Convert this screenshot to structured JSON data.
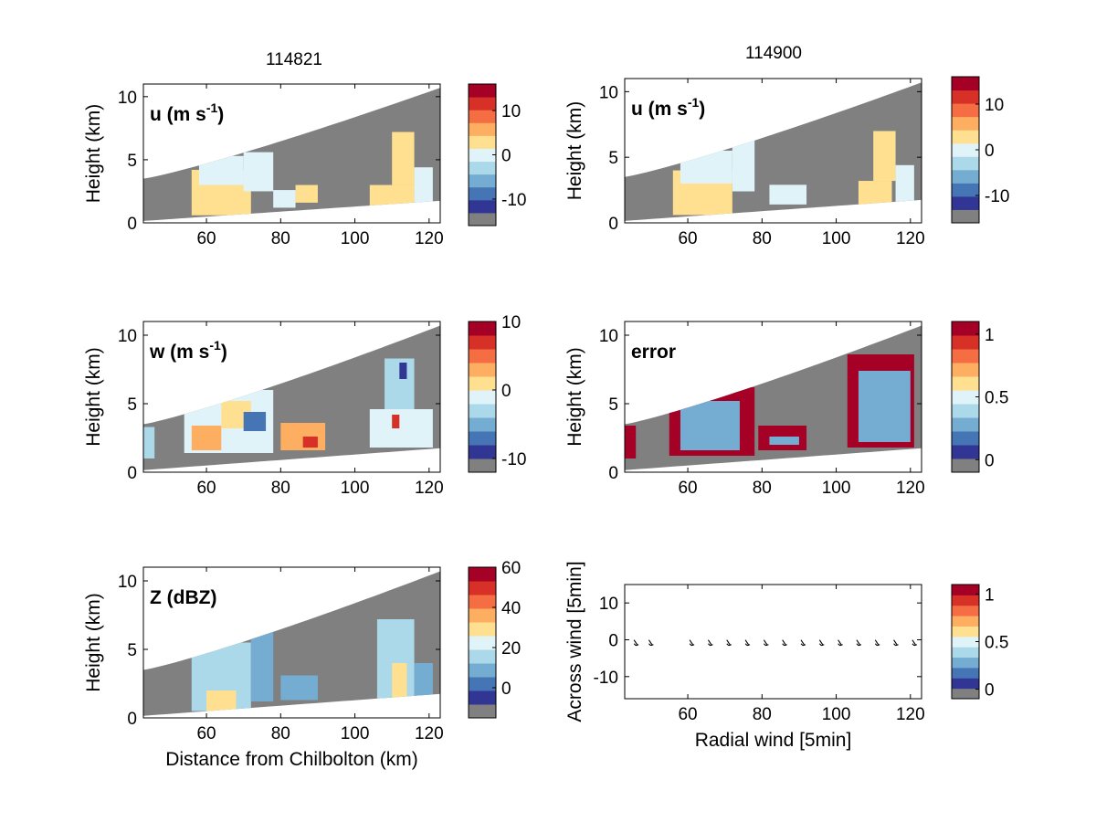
{
  "figure": {
    "column_titles": [
      "114821",
      "114900"
    ]
  },
  "colors": {
    "background_fill": "#808080",
    "colormap": [
      "#808080",
      "#313695",
      "#4575b4",
      "#74add1",
      "#abd9e9",
      "#e0f3f8",
      "#fee090",
      "#fdae61",
      "#f46d43",
      "#d73027",
      "#a50026"
    ]
  },
  "chart_data": [
    {
      "id": "u_left",
      "type": "heatmap",
      "title": "114821",
      "label": "u (m s",
      "label_sup": "-1",
      "label_end": ")",
      "xlabel": "",
      "ylabel": "Height (km)",
      "xlim": [
        43,
        123
      ],
      "ylim": [
        0,
        11
      ],
      "xticks": [
        "60",
        "80",
        "100",
        "120"
      ],
      "yticks": [
        "0",
        "5",
        "10"
      ],
      "colorbar": {
        "min": -16,
        "max": 16,
        "ticks": [
          "10",
          "0",
          "-10"
        ],
        "tick_values": [
          10,
          0,
          -10
        ]
      },
      "cells": [
        {
          "x": [
            56,
            72
          ],
          "y": [
            0.6,
            4.2
          ],
          "c": "#fee090"
        },
        {
          "x": [
            58,
            70
          ],
          "y": [
            3.0,
            5.3
          ],
          "c": "#e0f3f8"
        },
        {
          "x": [
            70,
            78
          ],
          "y": [
            2.5,
            5.6
          ],
          "c": "#e0f3f8"
        },
        {
          "x": [
            78,
            84
          ],
          "y": [
            1.2,
            2.6
          ],
          "c": "#e0f3f8"
        },
        {
          "x": [
            84,
            90
          ],
          "y": [
            1.6,
            3.0
          ],
          "c": "#fee090"
        },
        {
          "x": [
            104,
            116
          ],
          "y": [
            1.1,
            3.0
          ],
          "c": "#fee090"
        },
        {
          "x": [
            110,
            116
          ],
          "y": [
            3.0,
            7.2
          ],
          "c": "#fee090"
        },
        {
          "x": [
            116,
            121
          ],
          "y": [
            1.3,
            4.4
          ],
          "c": "#e0f3f8"
        }
      ]
    },
    {
      "id": "u_right",
      "type": "heatmap",
      "title": "114900",
      "label": "u (m s",
      "label_sup": "-1",
      "label_end": ")",
      "xlabel": "",
      "ylabel": "Height (km)",
      "xlim": [
        43,
        123
      ],
      "ylim": [
        0,
        11
      ],
      "xticks": [
        "60",
        "80",
        "100",
        "120"
      ],
      "yticks": [
        "0",
        "5",
        "10"
      ],
      "colorbar": {
        "min": -16,
        "max": 16,
        "ticks": [
          "10",
          "0",
          "-10"
        ],
        "tick_values": [
          10,
          0,
          -10
        ]
      },
      "cells": [
        {
          "x": [
            56,
            72
          ],
          "y": [
            0.6,
            4.0
          ],
          "c": "#fee090"
        },
        {
          "x": [
            58,
            72
          ],
          "y": [
            3.0,
            5.5
          ],
          "c": "#e0f3f8"
        },
        {
          "x": [
            72,
            78
          ],
          "y": [
            2.4,
            6.3
          ],
          "c": "#e0f3f8"
        },
        {
          "x": [
            82,
            92
          ],
          "y": [
            1.4,
            2.9
          ],
          "c": "#e0f3f8"
        },
        {
          "x": [
            106,
            115
          ],
          "y": [
            1.1,
            3.2
          ],
          "c": "#fee090"
        },
        {
          "x": [
            110,
            116
          ],
          "y": [
            3.2,
            7.0
          ],
          "c": "#fee090"
        },
        {
          "x": [
            116,
            121
          ],
          "y": [
            1.3,
            4.4
          ],
          "c": "#e0f3f8"
        }
      ]
    },
    {
      "id": "w_left",
      "type": "heatmap",
      "label": "w (m s",
      "label_sup": "-1",
      "label_end": ")",
      "xlabel": "",
      "ylabel": "Height (km)",
      "xlim": [
        43,
        123
      ],
      "ylim": [
        0,
        11
      ],
      "xticks": [
        "60",
        "80",
        "100",
        "120"
      ],
      "yticks": [
        "0",
        "5",
        "10"
      ],
      "colorbar": {
        "min": -12,
        "max": 10,
        "ticks": [
          "10",
          "0",
          "-10"
        ],
        "tick_values": [
          10,
          0,
          -10
        ]
      },
      "cells": [
        {
          "x": [
            43,
            46
          ],
          "y": [
            1.0,
            3.3
          ],
          "c": "#abd9e9"
        },
        {
          "x": [
            54,
            78
          ],
          "y": [
            1.4,
            6.0
          ],
          "c": "#e0f3f8"
        },
        {
          "x": [
            56,
            64
          ],
          "y": [
            1.6,
            3.4
          ],
          "c": "#fdae61"
        },
        {
          "x": [
            64,
            72
          ],
          "y": [
            3.2,
            5.2
          ],
          "c": "#fee090"
        },
        {
          "x": [
            70,
            76
          ],
          "y": [
            3.0,
            4.4
          ],
          "c": "#4575b4"
        },
        {
          "x": [
            80,
            92
          ],
          "y": [
            1.6,
            3.6
          ],
          "c": "#fdae61"
        },
        {
          "x": [
            86,
            90
          ],
          "y": [
            1.8,
            2.6
          ],
          "c": "#d73027"
        },
        {
          "x": [
            104,
            121
          ],
          "y": [
            1.8,
            4.6
          ],
          "c": "#e0f3f8"
        },
        {
          "x": [
            108,
            116
          ],
          "y": [
            4.6,
            8.3
          ],
          "c": "#abd9e9"
        },
        {
          "x": [
            112,
            114
          ],
          "y": [
            6.8,
            8.0
          ],
          "c": "#313695"
        },
        {
          "x": [
            110,
            112
          ],
          "y": [
            3.2,
            4.2
          ],
          "c": "#d73027"
        }
      ]
    },
    {
      "id": "error_right",
      "type": "heatmap",
      "label": "error",
      "xlabel": "",
      "ylabel": "Height (km)",
      "xlim": [
        43,
        123
      ],
      "ylim": [
        0,
        11
      ],
      "xticks": [
        "60",
        "80",
        "100",
        "120"
      ],
      "yticks": [
        "0",
        "5",
        "10"
      ],
      "colorbar": {
        "min": -0.1,
        "max": 1.1,
        "ticks": [
          "1",
          "0.5",
          "0"
        ],
        "tick_values": [
          1,
          0.5,
          0
        ]
      },
      "cells": [
        {
          "x": [
            43,
            46
          ],
          "y": [
            1.0,
            3.4
          ],
          "c": "#a50026"
        },
        {
          "x": [
            55,
            78
          ],
          "y": [
            1.2,
            6.2
          ],
          "c": "#a50026"
        },
        {
          "x": [
            58,
            74
          ],
          "y": [
            1.6,
            5.2
          ],
          "c": "#74add1"
        },
        {
          "x": [
            79,
            92
          ],
          "y": [
            1.6,
            3.4
          ],
          "c": "#a50026"
        },
        {
          "x": [
            82,
            90
          ],
          "y": [
            2.0,
            2.6
          ],
          "c": "#74add1"
        },
        {
          "x": [
            103,
            121
          ],
          "y": [
            1.8,
            8.6
          ],
          "c": "#a50026"
        },
        {
          "x": [
            106,
            120
          ],
          "y": [
            2.2,
            7.4
          ],
          "c": "#74add1"
        }
      ]
    },
    {
      "id": "z_left",
      "type": "heatmap",
      "label": "Z (dBZ)",
      "xlabel": "Distance from Chilbolton (km)",
      "ylabel": "Height (km)",
      "xlim": [
        43,
        123
      ],
      "ylim": [
        0,
        11
      ],
      "xticks": [
        "60",
        "80",
        "100",
        "120"
      ],
      "yticks": [
        "0",
        "5",
        "10"
      ],
      "colorbar": {
        "min": -15,
        "max": 60,
        "ticks": [
          "60",
          "40",
          "20",
          "0"
        ],
        "tick_values": [
          60,
          40,
          20,
          0
        ]
      },
      "cells": [
        {
          "x": [
            56,
            72
          ],
          "y": [
            0.5,
            5.5
          ],
          "c": "#abd9e9"
        },
        {
          "x": [
            60,
            68
          ],
          "y": [
            0.5,
            2.0
          ],
          "c": "#fee090"
        },
        {
          "x": [
            72,
            78
          ],
          "y": [
            1.2,
            6.3
          ],
          "c": "#74add1"
        },
        {
          "x": [
            80,
            90
          ],
          "y": [
            1.3,
            3.1
          ],
          "c": "#74add1"
        },
        {
          "x": [
            106,
            116
          ],
          "y": [
            1.1,
            7.2
          ],
          "c": "#abd9e9"
        },
        {
          "x": [
            110,
            114
          ],
          "y": [
            1.4,
            4.0
          ],
          "c": "#fee090"
        },
        {
          "x": [
            116,
            121
          ],
          "y": [
            1.2,
            4.0
          ],
          "c": "#74add1"
        }
      ]
    },
    {
      "id": "quiver_right",
      "type": "scatter",
      "xlabel": "Radial wind [5min]",
      "ylabel": "Across wind [5min]",
      "xlim": [
        43,
        123
      ],
      "ylim": [
        -16,
        15
      ],
      "xticks": [
        "60",
        "80",
        "100",
        "120"
      ],
      "yticks": [
        "10",
        "0",
        "-10"
      ],
      "ytick_values": [
        10,
        0,
        -10
      ],
      "colorbar": {
        "min": -0.1,
        "max": 1.1,
        "ticks": [
          "1",
          "0.5",
          "0"
        ],
        "tick_values": [
          1,
          0.5,
          0
        ]
      },
      "points": [
        {
          "x": 46,
          "y": -0.8
        },
        {
          "x": 50,
          "y": -0.8
        },
        {
          "x": 61,
          "y": -0.8
        },
        {
          "x": 66,
          "y": -0.8
        },
        {
          "x": 71,
          "y": -0.8
        },
        {
          "x": 76,
          "y": -0.8
        },
        {
          "x": 81,
          "y": -0.8
        },
        {
          "x": 86,
          "y": -0.8
        },
        {
          "x": 91,
          "y": -0.8
        },
        {
          "x": 96,
          "y": -0.8
        },
        {
          "x": 101,
          "y": -0.8
        },
        {
          "x": 106,
          "y": -0.8
        },
        {
          "x": 111,
          "y": -0.8
        },
        {
          "x": 116,
          "y": -0.8
        },
        {
          "x": 121,
          "y": -0.8
        }
      ]
    }
  ]
}
